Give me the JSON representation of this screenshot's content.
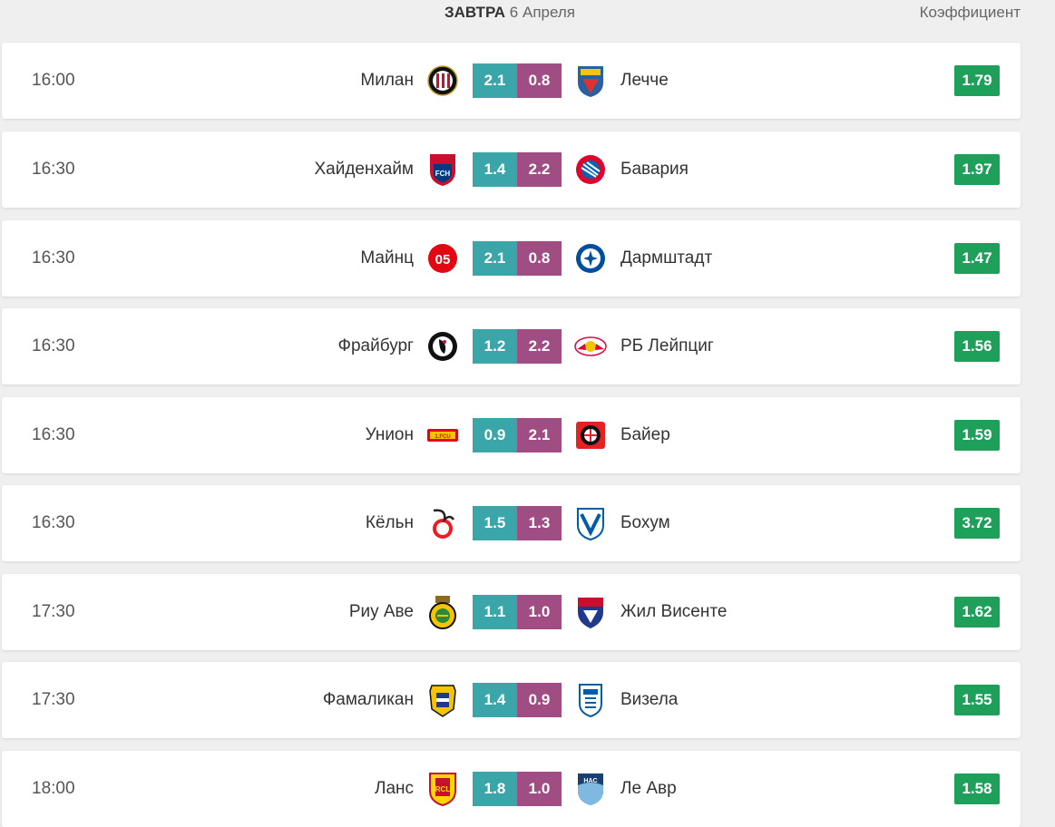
{
  "header": {
    "day_label": "ЗАВТРА",
    "date_label": "6 Апреля",
    "odds_label": "Коэффициент"
  },
  "colors": {
    "score_home": "#3aa6a9",
    "score_away": "#a04d84",
    "odds_badge": "#1fa05a"
  },
  "matches": [
    {
      "time": "16:00",
      "home": "Милан",
      "away": "Лечче",
      "score_home": "2.1",
      "score_away": "0.8",
      "odds": "1.79",
      "home_logo": "ac-milan-crest-icon",
      "away_logo": "lecce-crest-icon"
    },
    {
      "time": "16:30",
      "home": "Хайденхайм",
      "away": "Бавария",
      "score_home": "1.4",
      "score_away": "2.2",
      "odds": "1.97",
      "home_logo": "heidenheim-crest-icon",
      "away_logo": "bayern-crest-icon"
    },
    {
      "time": "16:30",
      "home": "Майнц",
      "away": "Дармштадт",
      "score_home": "2.1",
      "score_away": "0.8",
      "odds": "1.47",
      "home_logo": "mainz-crest-icon",
      "away_logo": "darmstadt-crest-icon"
    },
    {
      "time": "16:30",
      "home": "Фрайбург",
      "away": "РБ Лейпциг",
      "score_home": "1.2",
      "score_away": "2.2",
      "odds": "1.56",
      "home_logo": "freiburg-crest-icon",
      "away_logo": "rb-leipzig-crest-icon"
    },
    {
      "time": "16:30",
      "home": "Унион",
      "away": "Байер",
      "score_home": "0.9",
      "score_away": "2.1",
      "odds": "1.59",
      "home_logo": "union-berlin-crest-icon",
      "away_logo": "leverkusen-crest-icon"
    },
    {
      "time": "16:30",
      "home": "Кёльн",
      "away": "Бохум",
      "score_home": "1.5",
      "score_away": "1.3",
      "odds": "3.72",
      "home_logo": "koln-crest-icon",
      "away_logo": "bochum-crest-icon"
    },
    {
      "time": "17:30",
      "home": "Риу Аве",
      "away": "Жил Висенте",
      "score_home": "1.1",
      "score_away": "1.0",
      "odds": "1.62",
      "home_logo": "rio-ave-crest-icon",
      "away_logo": "gil-vicente-crest-icon"
    },
    {
      "time": "17:30",
      "home": "Фамаликан",
      "away": "Визела",
      "score_home": "1.4",
      "score_away": "0.9",
      "odds": "1.55",
      "home_logo": "famalicao-crest-icon",
      "away_logo": "vizela-crest-icon"
    },
    {
      "time": "18:00",
      "home": "Ланс",
      "away": "Ле Авр",
      "score_home": "1.8",
      "score_away": "1.0",
      "odds": "1.58",
      "home_logo": "lens-crest-icon",
      "away_logo": "le-havre-crest-icon"
    }
  ]
}
